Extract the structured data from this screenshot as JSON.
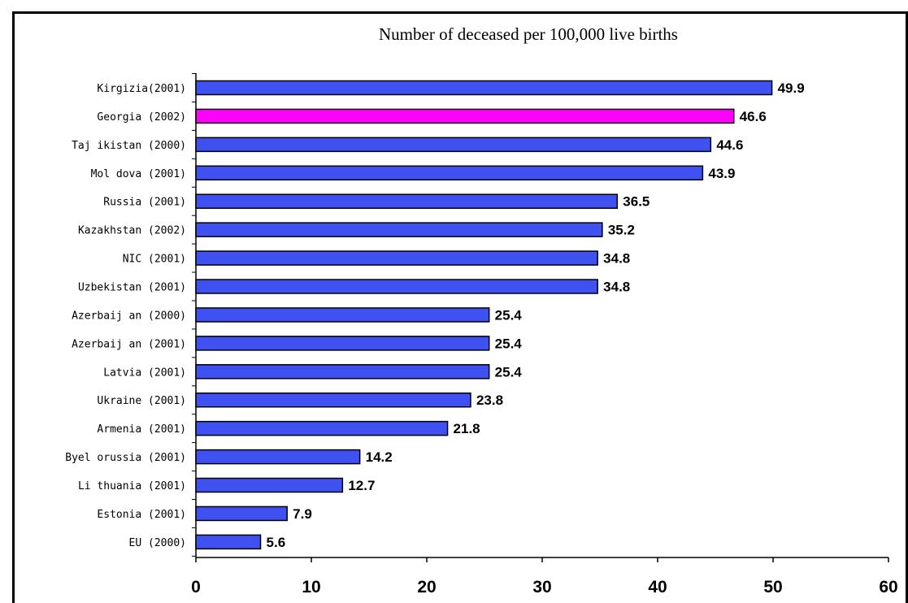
{
  "chart_data": {
    "type": "bar",
    "orientation": "horizontal",
    "title": "Number of deceased per 100,000 live births",
    "categories": [
      "Kirgizia(2001)",
      "Georgia (2002)",
      "Taj ikistan (2000)",
      "Mol dova (2001)",
      "Russia (2001)",
      "Kazakhstan (2002)",
      "NIC (2001)",
      "Uzbekistan (2001)",
      "Azerbaij an (2000)",
      "Azerbaij an (2001)",
      "Latvia (2001)",
      "Ukraine (2001)",
      "Armenia (2001)",
      "Byel orussia (2001)",
      "Li thuania (2001)",
      "Estonia (2001)",
      "EU (2000)"
    ],
    "values": [
      49.9,
      46.6,
      44.6,
      43.9,
      36.5,
      35.2,
      34.8,
      34.8,
      25.4,
      25.4,
      25.4,
      23.8,
      21.8,
      14.2,
      12.7,
      7.9,
      5.6
    ],
    "value_labels": [
      "49.9",
      "46.6",
      "44.6",
      "43.9",
      "36.5",
      "35.2",
      "34.8",
      "34.8",
      "25.4",
      "25.4",
      "25.4",
      "23.8",
      "21.8",
      "14.2",
      "12.7",
      "7.9",
      "5.6"
    ],
    "highlight_category": "Georgia (2002)",
    "xlim": [
      0,
      60
    ],
    "xticks": [
      "0",
      "10",
      "20",
      "30",
      "40",
      "50",
      "60"
    ],
    "xlabel": "",
    "ylabel": "",
    "grid": false,
    "colors": {
      "bar": "#3f51f0",
      "highlight": "#ff00ff",
      "edge": "#000000"
    }
  }
}
